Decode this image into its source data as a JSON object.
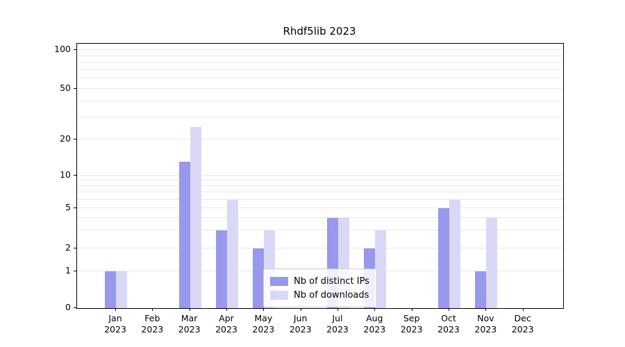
{
  "title": "Rhdf5lib 2023",
  "chart_data": {
    "type": "bar",
    "categories": [
      [
        "Jan",
        "2023"
      ],
      [
        "Feb",
        "2023"
      ],
      [
        "Mar",
        "2023"
      ],
      [
        "Apr",
        "2023"
      ],
      [
        "May",
        "2023"
      ],
      [
        "Jun",
        "2023"
      ],
      [
        "Jul",
        "2023"
      ],
      [
        "Aug",
        "2023"
      ],
      [
        "Sep",
        "2023"
      ],
      [
        "Oct",
        "2023"
      ],
      [
        "Nov",
        "2023"
      ],
      [
        "Dec",
        "2023"
      ]
    ],
    "series": [
      {
        "name": "Nb of distinct IPs",
        "color": "#9898ec",
        "values": [
          1,
          0,
          13,
          3,
          2,
          0,
          4,
          2,
          0,
          5,
          1,
          0
        ]
      },
      {
        "name": "Nb of downloads",
        "color": "#d9d9f7",
        "values": [
          1,
          0,
          25,
          6,
          3,
          0,
          4,
          3,
          0,
          6,
          4,
          0
        ]
      }
    ],
    "yticks": [
      0,
      1,
      2,
      5,
      10,
      20,
      50,
      100
    ],
    "gridline_values": [
      1,
      2,
      3,
      4,
      5,
      6,
      7,
      8,
      9,
      10,
      20,
      30,
      40,
      50,
      60,
      70,
      80,
      90,
      100
    ],
    "scale": "symlog",
    "scale_anchors": [
      [
        0,
        0
      ],
      [
        1,
        0.139
      ],
      [
        2,
        0.226
      ],
      [
        5,
        0.378
      ],
      [
        10,
        0.501
      ],
      [
        20,
        0.638
      ],
      [
        50,
        0.829
      ],
      [
        100,
        0.976
      ]
    ],
    "xlabel": "",
    "ylabel": "",
    "grid": "horizontal",
    "legend_position": "lower center"
  }
}
